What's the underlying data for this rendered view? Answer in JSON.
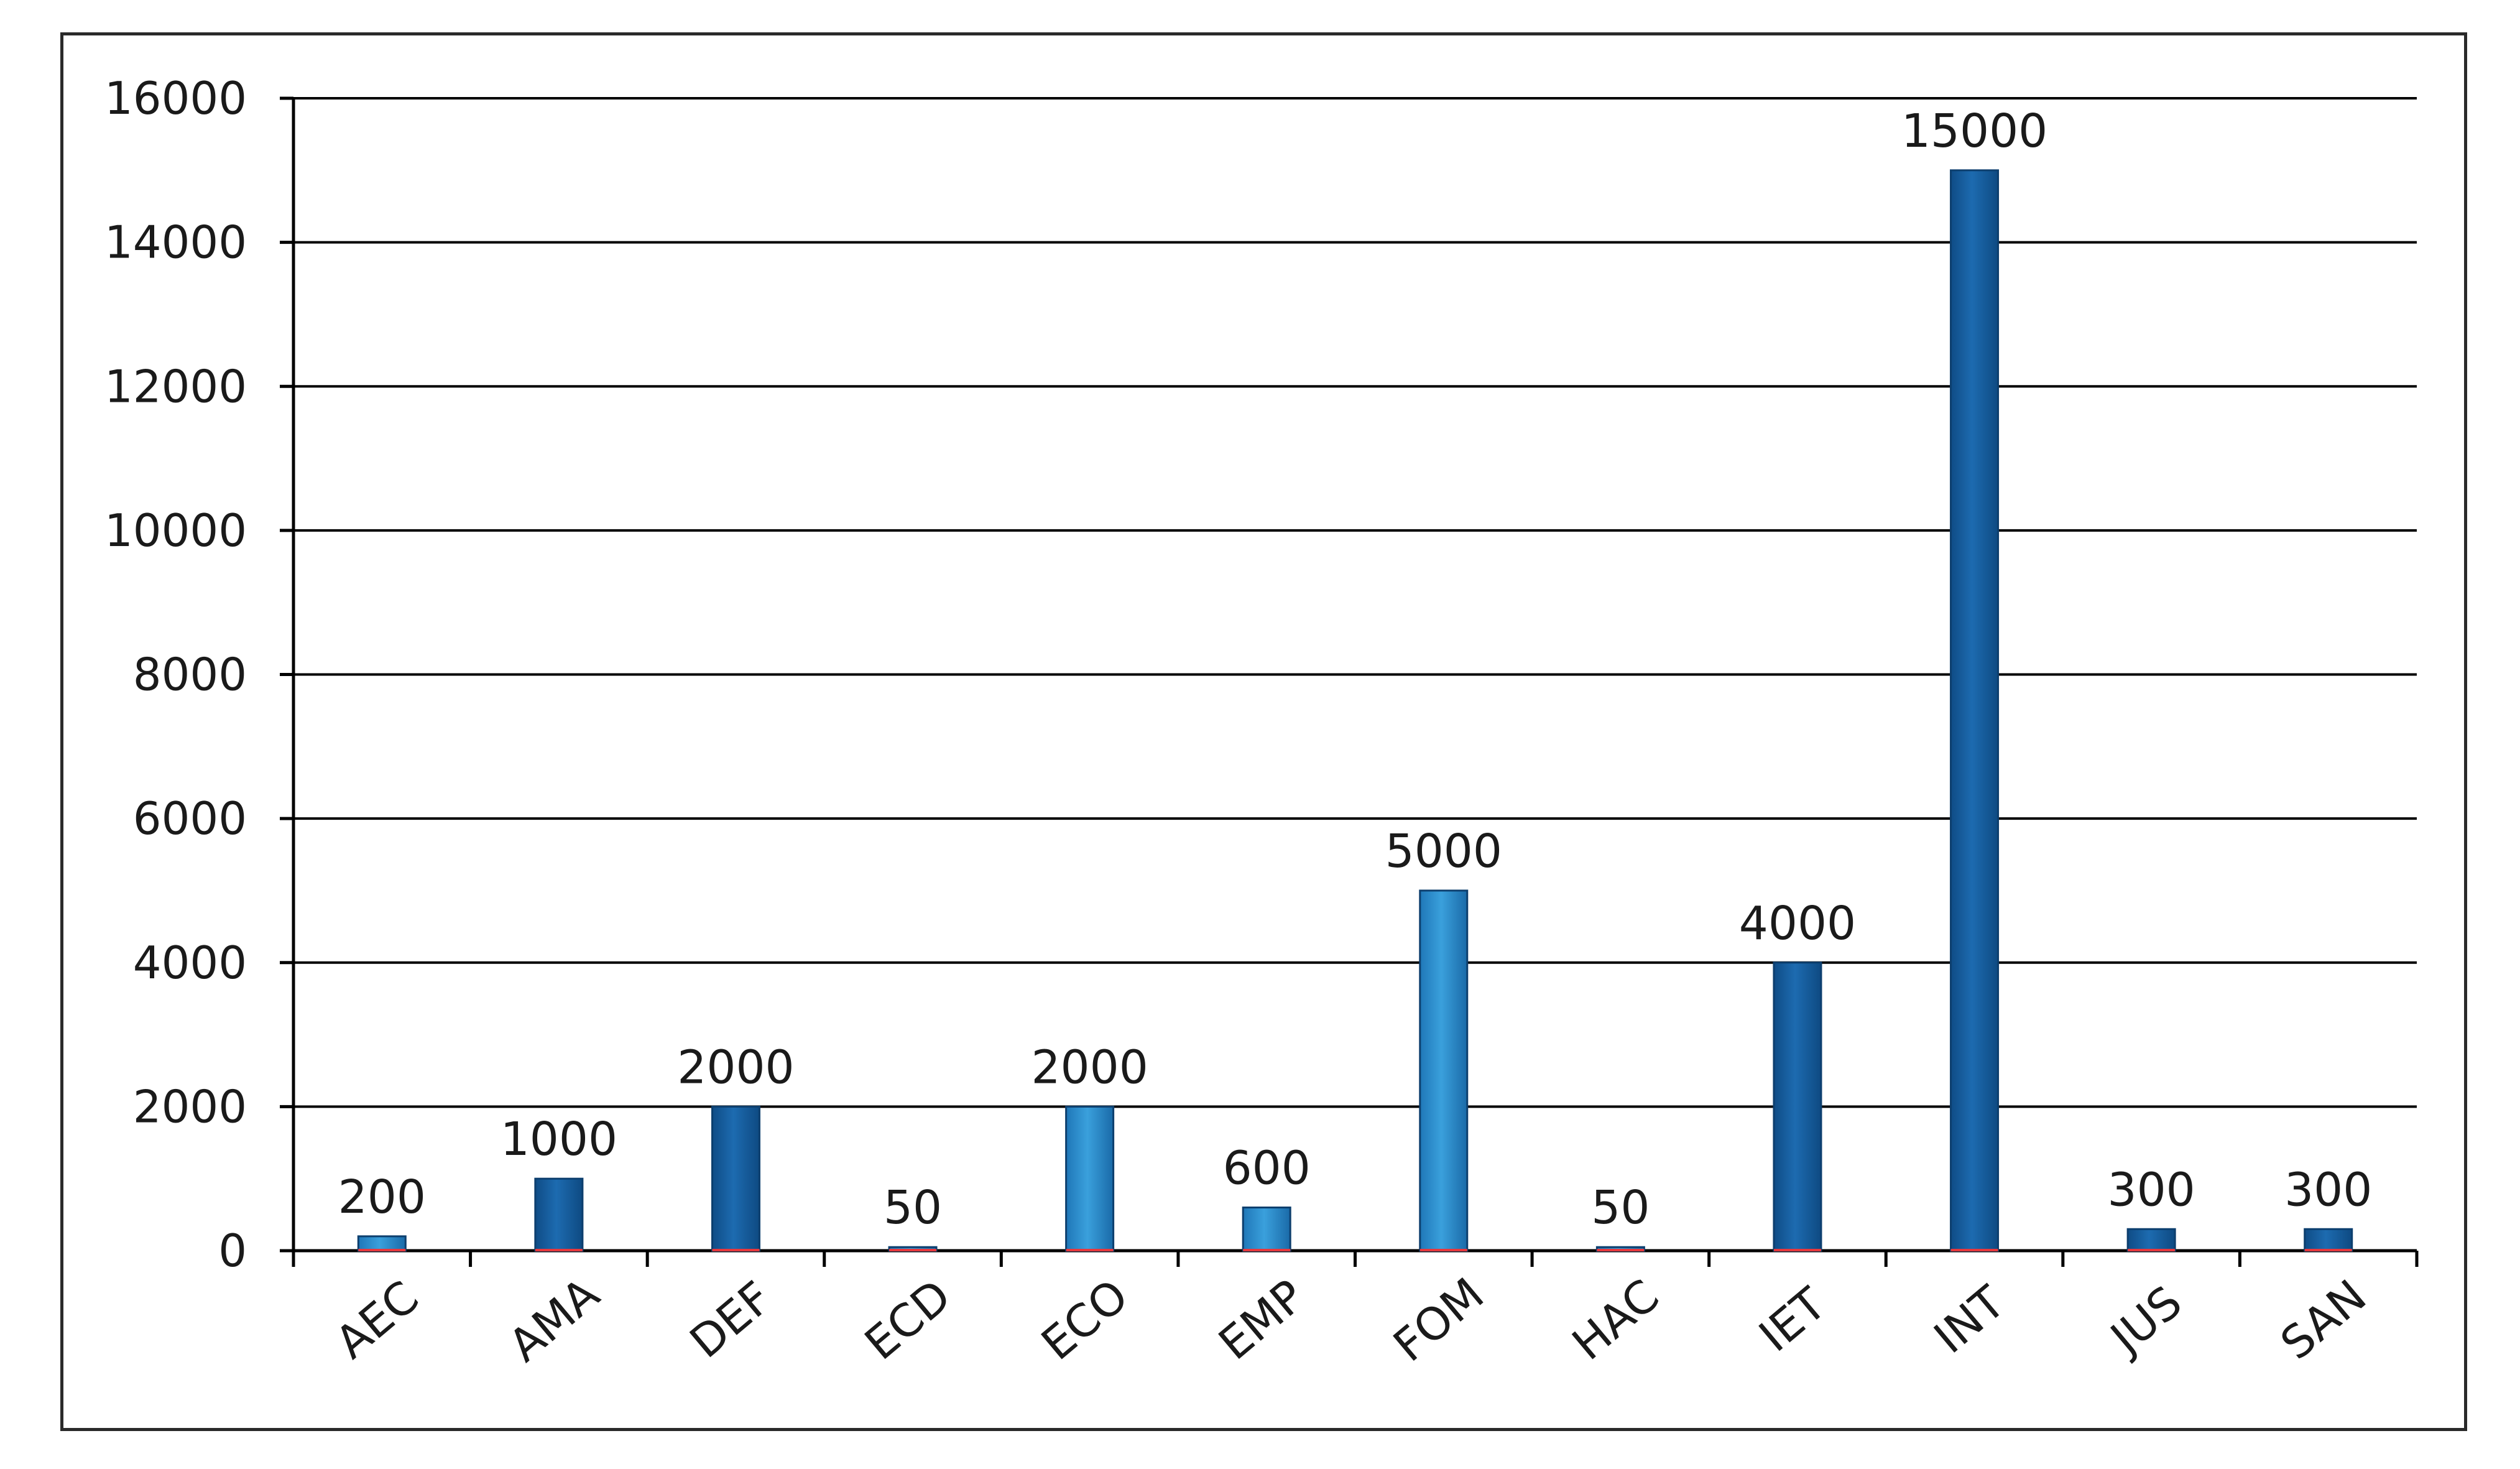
{
  "chart_data": {
    "type": "bar",
    "categories": [
      "AEC",
      "AMA",
      "DEF",
      "ECD",
      "ECO",
      "EMP",
      "FOM",
      "HAC",
      "IET",
      "INT",
      "JUS",
      "SAN"
    ],
    "values": [
      200,
      1000,
      2000,
      50,
      2000,
      600,
      5000,
      50,
      4000,
      15000,
      300,
      300
    ],
    "data_labels": [
      "200",
      "1000",
      "2000",
      "50",
      "2000",
      "600",
      "5000",
      "50",
      "4000",
      "15000",
      "300",
      "300"
    ],
    "title": "",
    "xlabel": "",
    "ylabel": "",
    "ylim": [
      0,
      16000
    ],
    "yticks": [
      0,
      2000,
      4000,
      6000,
      8000,
      10000,
      12000,
      14000,
      16000
    ],
    "ytick_labels": [
      "0",
      "2000",
      "4000",
      "6000",
      "8000",
      "10000",
      "12000",
      "14000",
      "16000"
    ],
    "grid": true,
    "legend": "none",
    "x_tick_label_rotation": "diagonal",
    "colors": {
      "bar_light": "#2d8fcf",
      "bar_dark": "#145a99",
      "bar_edge": "#0d3f6e",
      "bar_base": "#e8383d",
      "gridline": "#000000",
      "frame": "#2a2a2a"
    }
  }
}
